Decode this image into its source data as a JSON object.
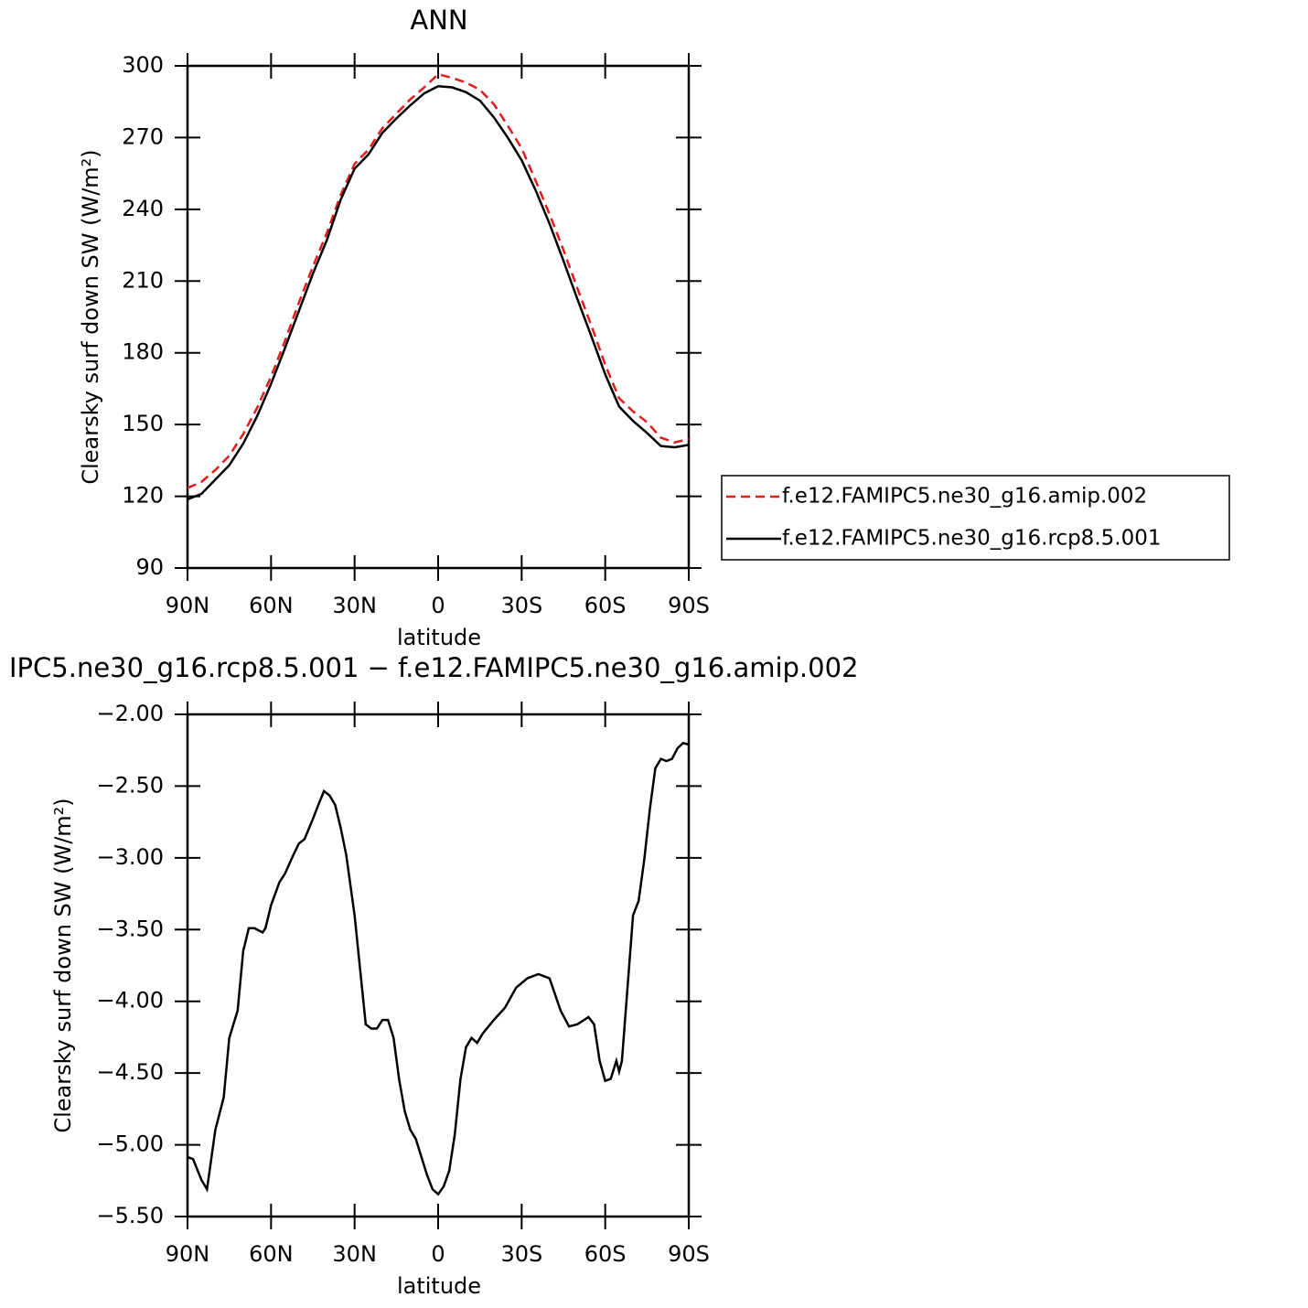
{
  "chart_data": [
    {
      "type": "line",
      "title": "ANN",
      "xlabel": "latitude",
      "ylabel": "Clearsky surf down SW (W/m²)",
      "x": [
        90,
        85,
        80,
        75,
        70,
        65,
        60,
        55,
        50,
        45,
        40,
        35,
        30,
        25,
        20,
        15,
        10,
        5,
        0,
        -5,
        -10,
        -15,
        -20,
        -25,
        -30,
        -35,
        -40,
        -45,
        -50,
        -55,
        -60,
        -65,
        -70,
        -75,
        -80,
        -85,
        -90
      ],
      "series": [
        {
          "name": "f.e12.FAMIPC5.ne30_g16.amip.002",
          "color": "#e41a1c",
          "dash": "dashed",
          "values": [
            123.5,
            126,
            131,
            137,
            146,
            157,
            170,
            185,
            201,
            216,
            230,
            246,
            259,
            265,
            274,
            280,
            286,
            291,
            296.5,
            295,
            293,
            290,
            284,
            275,
            265.5,
            252,
            238,
            223,
            207,
            191.5,
            175,
            161,
            155.5,
            151,
            144.5,
            142.5,
            144
          ]
        },
        {
          "name": "f.e12.FAMIPC5.ne30_g16.rcp8.5.001",
          "color": "#000000",
          "dash": "solid",
          "values": [
            118.7,
            121,
            127,
            133,
            142,
            153.5,
            167,
            182,
            197.5,
            213,
            227,
            244,
            257,
            263,
            272,
            278,
            283.5,
            288.5,
            291.5,
            291,
            289,
            285.5,
            278.5,
            270,
            260.5,
            248,
            234,
            218.5,
            202.5,
            187,
            171,
            157.5,
            151.5,
            146.5,
            141,
            140.5,
            141.5
          ]
        }
      ],
      "xlim": [
        90,
        -90
      ],
      "xticks": [
        {
          "value": 90,
          "label": "90N"
        },
        {
          "value": 60,
          "label": "60N"
        },
        {
          "value": 30,
          "label": "30N"
        },
        0,
        {
          "value": -30,
          "label": "30S"
        },
        {
          "value": -60,
          "label": "60S"
        },
        {
          "value": -90,
          "label": "90S"
        }
      ],
      "ylim": [
        90,
        300
      ],
      "yticks": [
        90,
        120,
        150,
        180,
        210,
        240,
        270,
        300
      ],
      "legend": "right"
    },
    {
      "type": "line",
      "title": "IPC5.ne30_g16.rcp8.5.001 − f.e12.FAMIPC5.ne30_g16.amip.002",
      "xlabel": "latitude",
      "ylabel": "Clearsky surf down SW (W/m²)",
      "x": [
        90,
        88,
        85,
        83,
        80,
        77,
        75,
        72,
        70,
        68,
        66,
        64,
        63,
        62,
        60,
        57,
        55,
        52,
        50,
        48,
        45,
        43,
        41,
        39,
        37,
        35,
        33,
        30,
        28,
        26,
        24,
        22,
        20,
        18,
        16,
        14,
        12,
        10,
        8,
        6,
        4,
        2,
        0,
        -2,
        -4,
        -6,
        -8,
        -10,
        -12,
        -14,
        -16,
        -20,
        -24,
        -28,
        -32,
        -36,
        -40,
        -44,
        -47,
        -50,
        -54,
        -56,
        -58,
        -60,
        -62,
        -64,
        -65,
        -66,
        -68,
        -70,
        -72,
        -74,
        -76,
        -78,
        -80,
        -82,
        -84,
        -86,
        -88,
        -90
      ],
      "color": "#000000",
      "values": [
        -5.085,
        -5.1,
        -5.245,
        -5.31,
        -4.895,
        -4.67,
        -4.255,
        -4.065,
        -3.65,
        -3.49,
        -3.49,
        -3.51,
        -3.52,
        -3.49,
        -3.33,
        -3.17,
        -3.11,
        -2.98,
        -2.9,
        -2.87,
        -2.73,
        -2.63,
        -2.535,
        -2.565,
        -2.63,
        -2.79,
        -2.98,
        -3.4,
        -3.78,
        -4.16,
        -4.19,
        -4.19,
        -4.13,
        -4.13,
        -4.255,
        -4.545,
        -4.765,
        -4.895,
        -4.96,
        -5.085,
        -5.21,
        -5.31,
        -5.345,
        -5.29,
        -5.18,
        -4.925,
        -4.545,
        -4.32,
        -4.255,
        -4.29,
        -4.225,
        -4.13,
        -4.045,
        -3.905,
        -3.84,
        -3.81,
        -3.84,
        -4.065,
        -4.175,
        -4.16,
        -4.11,
        -4.16,
        -4.415,
        -4.555,
        -4.54,
        -4.415,
        -4.49,
        -4.415,
        -3.905,
        -3.4,
        -3.3,
        -3.015,
        -2.665,
        -2.375,
        -2.31,
        -2.325,
        -2.31,
        -2.235,
        -2.2,
        -2.21
      ],
      "xlim": [
        90,
        -90
      ],
      "xticks": [
        {
          "value": 90,
          "label": "90N"
        },
        {
          "value": 60,
          "label": "60N"
        },
        {
          "value": 30,
          "label": "30N"
        },
        0,
        {
          "value": -30,
          "label": "30S"
        },
        {
          "value": -60,
          "label": "60S"
        },
        {
          "value": -90,
          "label": "90S"
        }
      ],
      "ylim": [
        -5.5,
        -2
      ],
      "yticks": [
        {
          "value": -5.5,
          "label": "−5.50"
        },
        {
          "value": -5,
          "label": "−5.00"
        },
        {
          "value": -4.5,
          "label": "−4.50"
        },
        {
          "value": -4,
          "label": "−4.00"
        },
        {
          "value": -3.5,
          "label": "−3.50"
        },
        {
          "value": -3,
          "label": "−3.00"
        },
        {
          "value": -2.5,
          "label": "−2.50"
        },
        {
          "value": -2,
          "label": "−2.00"
        }
      ]
    }
  ]
}
